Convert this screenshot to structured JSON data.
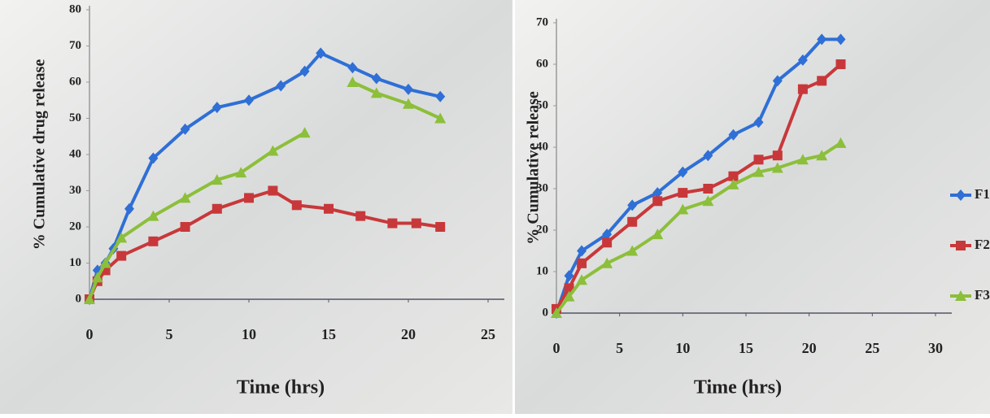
{
  "chart_data": [
    {
      "type": "line",
      "ylabel": "% Cumulative drug release",
      "xlabel": "Time (hrs)",
      "xlim": [
        0,
        25
      ],
      "ylim": [
        0,
        80
      ],
      "xticks": [
        0,
        5,
        10,
        15,
        20,
        25
      ],
      "yticks": [
        0,
        10,
        20,
        30,
        40,
        50,
        60,
        70,
        80
      ],
      "series": [
        {
          "color": "#2f6fd6",
          "marker": "diamond",
          "x": [
            0,
            0.5,
            1,
            1.5,
            2.5,
            4,
            6,
            8,
            10,
            12,
            13.5,
            14.5,
            16.5,
            18,
            20,
            22
          ],
          "values": [
            0,
            8,
            10,
            14,
            25,
            39,
            47,
            53,
            55,
            59,
            63,
            68,
            64,
            61,
            58,
            56
          ]
        },
        {
          "color": "#c8383a",
          "marker": "square",
          "x": [
            0,
            0.5,
            1,
            2,
            4,
            6,
            8,
            10,
            11.5,
            13,
            15,
            17,
            19,
            20.5,
            22
          ],
          "values": [
            0,
            5,
            8,
            12,
            16,
            20,
            25,
            28,
            30,
            26,
            25,
            23,
            21,
            21,
            20
          ]
        },
        {
          "color": "#8cbf3a",
          "marker": "triangle",
          "x": [
            0,
            0.5,
            1,
            2,
            4,
            6,
            8,
            9.5,
            11.5,
            13.5,
            15,
            16.5,
            18,
            20,
            22
          ],
          "values": [
            0,
            6,
            10,
            17,
            23,
            28,
            33,
            35,
            41,
            46,
            null,
            60,
            57,
            54,
            50
          ]
        }
      ]
    },
    {
      "type": "line",
      "ylabel": "% Cumulative release",
      "xlabel": "Time (hrs)",
      "legend": "right",
      "xlim": [
        0,
        30
      ],
      "ylim": [
        0,
        70
      ],
      "xticks": [
        0,
        5,
        10,
        15,
        20,
        25,
        30
      ],
      "yticks": [
        0,
        10,
        20,
        30,
        40,
        50,
        60,
        70
      ],
      "series": [
        {
          "name": "F1",
          "color": "#2f6fd6",
          "marker": "diamond",
          "x": [
            0,
            1,
            2,
            4,
            6,
            8,
            10,
            12,
            14,
            16,
            17.5,
            19.5,
            21,
            22.5
          ],
          "values": [
            0,
            9,
            15,
            19,
            26,
            29,
            34,
            38,
            43,
            46,
            56,
            61,
            66,
            66
          ]
        },
        {
          "name": "F2",
          "color": "#c8383a",
          "marker": "square",
          "x": [
            0,
            1,
            2,
            4,
            6,
            8,
            10,
            12,
            14,
            16,
            17.5,
            19.5,
            21,
            22.5
          ],
          "values": [
            1,
            6,
            12,
            17,
            22,
            27,
            29,
            30,
            33,
            37,
            38,
            54,
            56,
            60
          ]
        },
        {
          "name": "F3",
          "color": "#8cbf3a",
          "marker": "triangle",
          "x": [
            0,
            1,
            2,
            4,
            6,
            8,
            10,
            12,
            14,
            16,
            17.5,
            19.5,
            21,
            22.5
          ],
          "values": [
            0,
            4,
            8,
            12,
            15,
            19,
            25,
            27,
            31,
            34,
            35,
            37,
            38,
            41
          ]
        }
      ]
    }
  ]
}
